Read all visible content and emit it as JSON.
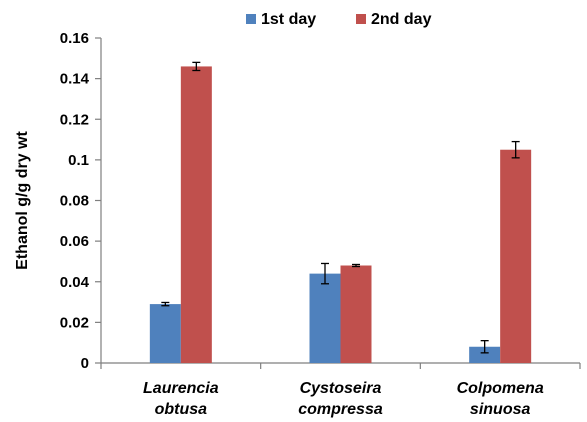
{
  "chart_data": {
    "type": "bar",
    "title": "",
    "ylabel": "Ethanol g/g dry wt",
    "xlabel": "",
    "ylim": [
      0,
      0.16
    ],
    "yticks": [
      "0",
      "0.02",
      "0.04",
      "0.06",
      "0.08",
      "0.1",
      "0.12",
      "0.14",
      "0.16"
    ],
    "categories": [
      [
        "Laurencia",
        "obtusa"
      ],
      [
        "Cystoseira",
        "compressa"
      ],
      [
        "Colpomena",
        "sinuosa"
      ]
    ],
    "legend_position": "top",
    "grid": false,
    "error_bars": true,
    "series": [
      {
        "name": "1st day",
        "color": "#4f81bd",
        "values": [
          0.029,
          0.044,
          0.008
        ],
        "errors": [
          0.0008,
          0.005,
          0.003
        ]
      },
      {
        "name": "2nd day",
        "color": "#c0504d",
        "values": [
          0.146,
          0.048,
          0.105
        ],
        "errors": [
          0.002,
          0.0005,
          0.004
        ]
      }
    ]
  }
}
